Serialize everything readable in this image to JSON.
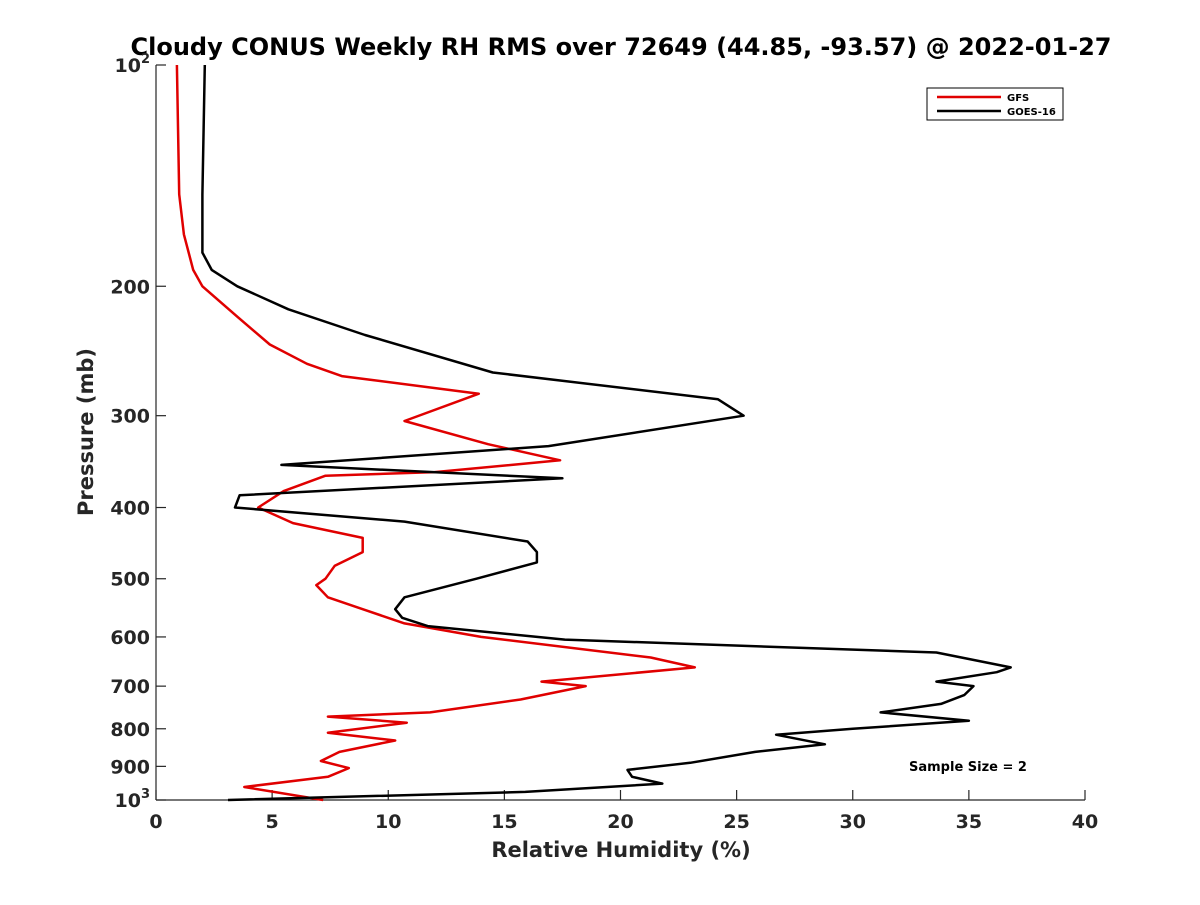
{
  "chart_data": {
    "type": "line",
    "title": "Cloudy CONUS Weekly RH RMS over 72649 (44.85, -93.57) @ 2022-01-27",
    "xlabel": "Relative Humidity (%)",
    "ylabel": "Pressure (mb)",
    "xlim": [
      0,
      40
    ],
    "ylim": [
      100,
      1000
    ],
    "y_scale": "log",
    "y_reversed": true,
    "grid": false,
    "legend_position": "top-right",
    "x_ticks": [
      0,
      5,
      10,
      15,
      20,
      25,
      30,
      35,
      40
    ],
    "y_ticks": [
      {
        "value": 100,
        "label_base": "10",
        "label_exp": "2"
      },
      {
        "value": 200,
        "label_base": "200",
        "label_exp": ""
      },
      {
        "value": 300,
        "label_base": "300",
        "label_exp": ""
      },
      {
        "value": 400,
        "label_base": "400",
        "label_exp": ""
      },
      {
        "value": 500,
        "label_base": "500",
        "label_exp": ""
      },
      {
        "value": 600,
        "label_base": "600",
        "label_exp": ""
      },
      {
        "value": 700,
        "label_base": "700",
        "label_exp": ""
      },
      {
        "value": 800,
        "label_base": "800",
        "label_exp": ""
      },
      {
        "value": 900,
        "label_base": "900",
        "label_exp": ""
      },
      {
        "value": 1000,
        "label_base": "10",
        "label_exp": "3"
      }
    ],
    "annotation": "Sample Size = 2",
    "series": [
      {
        "name": "GFS",
        "color": "#e00000",
        "points": [
          [
            0.9,
            100
          ],
          [
            1.0,
            150
          ],
          [
            1.2,
            170
          ],
          [
            1.6,
            190
          ],
          [
            2.0,
            200
          ],
          [
            3.5,
            220
          ],
          [
            4.9,
            240
          ],
          [
            6.5,
            255
          ],
          [
            8.0,
            265
          ],
          [
            13.9,
            280
          ],
          [
            10.7,
            305
          ],
          [
            14.3,
            328
          ],
          [
            17.4,
            345
          ],
          [
            12.0,
            358
          ],
          [
            7.3,
            362
          ],
          [
            5.5,
            380
          ],
          [
            4.4,
            400
          ],
          [
            5.9,
            420
          ],
          [
            8.9,
            440
          ],
          [
            8.9,
            460
          ],
          [
            7.7,
            480
          ],
          [
            7.3,
            500
          ],
          [
            6.9,
            510
          ],
          [
            7.4,
            530
          ],
          [
            8.9,
            550
          ],
          [
            10.7,
            575
          ],
          [
            14.0,
            600
          ],
          [
            21.3,
            640
          ],
          [
            23.2,
            660
          ],
          [
            16.6,
            690
          ],
          [
            18.5,
            700
          ],
          [
            15.7,
            730
          ],
          [
            11.8,
            760
          ],
          [
            7.4,
            770
          ],
          [
            10.8,
            785
          ],
          [
            7.4,
            810
          ],
          [
            10.3,
            830
          ],
          [
            7.9,
            860
          ],
          [
            7.1,
            885
          ],
          [
            8.3,
            905
          ],
          [
            7.4,
            930
          ],
          [
            3.8,
            960
          ],
          [
            7.2,
            1000
          ]
        ]
      },
      {
        "name": "GOES-16",
        "color": "#000000",
        "points": [
          [
            2.1,
            100
          ],
          [
            2.0,
            150
          ],
          [
            2.0,
            180
          ],
          [
            2.4,
            190
          ],
          [
            3.5,
            200
          ],
          [
            5.7,
            215
          ],
          [
            9.0,
            233
          ],
          [
            14.5,
            262
          ],
          [
            24.2,
            285
          ],
          [
            25.3,
            300
          ],
          [
            16.9,
            330
          ],
          [
            5.4,
            350
          ],
          [
            17.5,
            365
          ],
          [
            3.6,
            385
          ],
          [
            3.4,
            400
          ],
          [
            10.7,
            418
          ],
          [
            16.0,
            445
          ],
          [
            16.4,
            460
          ],
          [
            16.4,
            475
          ],
          [
            13.8,
            500
          ],
          [
            10.7,
            530
          ],
          [
            10.3,
            550
          ],
          [
            10.6,
            565
          ],
          [
            11.7,
            580
          ],
          [
            17.6,
            605
          ],
          [
            33.6,
            630
          ],
          [
            36.8,
            660
          ],
          [
            36.2,
            670
          ],
          [
            33.6,
            690
          ],
          [
            35.2,
            700
          ],
          [
            34.8,
            720
          ],
          [
            33.8,
            740
          ],
          [
            31.2,
            760
          ],
          [
            35.0,
            780
          ],
          [
            30.0,
            800
          ],
          [
            26.7,
            815
          ],
          [
            28.8,
            840
          ],
          [
            25.8,
            860
          ],
          [
            23.0,
            890
          ],
          [
            20.3,
            910
          ],
          [
            20.5,
            930
          ],
          [
            21.8,
            950
          ],
          [
            15.9,
            975
          ],
          [
            3.1,
            1000
          ]
        ]
      }
    ]
  }
}
